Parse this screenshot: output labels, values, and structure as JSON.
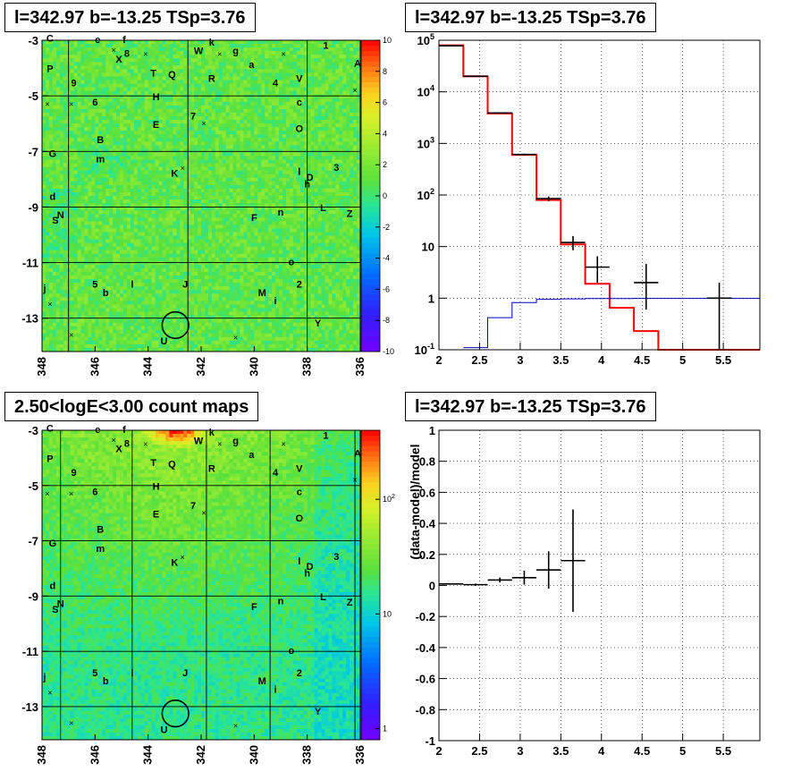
{
  "chart_data": [
    {
      "id": "residual_map",
      "type": "heatmap",
      "title": "l=342.97 b=-13.25 TSp=3.76",
      "xlim": [
        348,
        336
      ],
      "ylim": [
        -14.2,
        -3
      ],
      "x_ticks": [
        "348",
        "346",
        "344",
        "342",
        "340",
        "338",
        "336"
      ],
      "y_ticks": [
        "-3",
        "-5",
        "-7",
        "-9",
        "-11",
        "-13"
      ],
      "colorbar": {
        "min": -10,
        "max": 10,
        "ticks": [
          "-10",
          "-8",
          "-6",
          "-4",
          "-2",
          "0",
          "2",
          "4",
          "6",
          "8",
          "10"
        ]
      },
      "grid_lon": [
        347,
        342.5,
        338
      ],
      "grid_lat": [
        -5,
        -7,
        -9,
        -11,
        -13
      ],
      "circle": {
        "l": 342.97,
        "b": -13.25,
        "r": 0.5
      },
      "source_labels": [
        {
          "t": "C",
          "l": 347.7,
          "b": -3.05
        },
        {
          "t": "e",
          "l": 345.9,
          "b": -3.1
        },
        {
          "t": "f",
          "l": 344.9,
          "b": -3.1
        },
        {
          "t": "8",
          "l": 344.8,
          "b": -3.6
        },
        {
          "t": "X",
          "l": 345.1,
          "b": -3.8
        },
        {
          "t": "W",
          "l": 342.1,
          "b": -3.5
        },
        {
          "t": "k",
          "l": 341.6,
          "b": -3.2
        },
        {
          "t": "g",
          "l": 340.7,
          "b": -3.5
        },
        {
          "t": "1",
          "l": 337.3,
          "b": -3.3
        },
        {
          "t": "P",
          "l": 347.7,
          "b": -4.15
        },
        {
          "t": "a",
          "l": 340.1,
          "b": -4.0
        },
        {
          "t": "A",
          "l": 336.1,
          "b": -3.95
        },
        {
          "t": "T",
          "l": 343.8,
          "b": -4.3
        },
        {
          "t": "Q",
          "l": 343.1,
          "b": -4.35
        },
        {
          "t": "R",
          "l": 341.6,
          "b": -4.5
        },
        {
          "t": "4",
          "l": 339.2,
          "b": -4.65
        },
        {
          "t": "V",
          "l": 338.3,
          "b": -4.5
        },
        {
          "t": "9",
          "l": 346.8,
          "b": -4.65
        },
        {
          "t": "H",
          "l": 343.7,
          "b": -5.15
        },
        {
          "t": "6",
          "l": 346.0,
          "b": -5.35
        },
        {
          "t": "c",
          "l": 338.3,
          "b": -5.35
        },
        {
          "t": "E",
          "l": 343.7,
          "b": -6.15
        },
        {
          "t": "7",
          "l": 342.3,
          "b": -5.85
        },
        {
          "t": "O",
          "l": 338.3,
          "b": -6.3
        },
        {
          "t": "B",
          "l": 345.8,
          "b": -6.7
        },
        {
          "t": "G",
          "l": 347.6,
          "b": -7.2
        },
        {
          "t": "m",
          "l": 345.8,
          "b": -7.4
        },
        {
          "t": "3",
          "l": 336.9,
          "b": -7.7
        },
        {
          "t": "K",
          "l": 343.0,
          "b": -7.9
        },
        {
          "t": "l",
          "l": 338.3,
          "b": -7.85
        },
        {
          "t": "D",
          "l": 337.9,
          "b": -8.05
        },
        {
          "t": "h",
          "l": 338.0,
          "b": -8.3
        },
        {
          "t": "d",
          "l": 347.6,
          "b": -8.75
        },
        {
          "t": "L",
          "l": 337.4,
          "b": -9.15
        },
        {
          "t": "Z",
          "l": 336.4,
          "b": -9.35
        },
        {
          "t": "n",
          "l": 339.0,
          "b": -9.3
        },
        {
          "t": "F",
          "l": 340.0,
          "b": -9.5
        },
        {
          "t": "N",
          "l": 347.3,
          "b": -9.4
        },
        {
          "t": "S",
          "l": 347.5,
          "b": -9.6
        },
        {
          "t": "o",
          "l": 338.6,
          "b": -11.1
        },
        {
          "t": "2",
          "l": 338.3,
          "b": -11.9
        },
        {
          "t": "J",
          "l": 342.6,
          "b": -11.9
        },
        {
          "t": "5",
          "l": 346.0,
          "b": -11.9
        },
        {
          "t": "l",
          "l": 344.6,
          "b": -11.9
        },
        {
          "t": "b",
          "l": 345.6,
          "b": -12.2
        },
        {
          "t": "M",
          "l": 339.7,
          "b": -12.2
        },
        {
          "t": "i",
          "l": 339.2,
          "b": -12.5
        },
        {
          "t": "j",
          "l": 347.9,
          "b": -12.05
        },
        {
          "t": "Y",
          "l": 337.6,
          "b": -13.3
        },
        {
          "t": "U",
          "l": 343.4,
          "b": -13.95
        }
      ],
      "x_marks": [
        {
          "l": 345.3,
          "b": -3.35
        },
        {
          "l": 344.1,
          "b": -3.5
        },
        {
          "l": 341.3,
          "b": -3.5
        },
        {
          "l": 338.9,
          "b": -3.5
        },
        {
          "l": 336.2,
          "b": -4.8
        },
        {
          "l": 347.8,
          "b": -5.3
        },
        {
          "l": 346.9,
          "b": -5.3
        },
        {
          "l": 341.9,
          "b": -6.0
        },
        {
          "l": 342.7,
          "b": -7.6
        },
        {
          "l": 347.7,
          "b": -12.5
        },
        {
          "l": 346.9,
          "b": -13.6
        },
        {
          "l": 340.7,
          "b": -13.7
        }
      ]
    },
    {
      "id": "spectrum",
      "type": "line",
      "title": "l=342.97 b=-13.25 TSp=3.76",
      "log_y": true,
      "xlim": [
        2,
        5.95
      ],
      "ylim": [
        0.1,
        100000
      ],
      "x_ticks": [
        "2",
        "2.5",
        "3",
        "3.5",
        "4",
        "4.5",
        "5",
        "5.5"
      ],
      "y_ticks": [
        "10^-1",
        "1",
        "10",
        "10^2",
        "10^3",
        "10^4",
        "10^5"
      ],
      "grid": true,
      "series": [
        {
          "style": "red",
          "bin_edges": [
            2.0,
            2.3,
            2.6,
            2.9,
            3.2,
            3.5,
            3.8,
            4.1,
            4.4,
            4.7,
            5.95
          ],
          "values": [
            80000,
            20000,
            3800,
            600,
            80,
            11,
            1.9,
            0.65,
            0.23,
            0.1
          ]
        },
        {
          "style": "blue",
          "bin_edges": [
            2.3,
            2.6,
            2.9,
            3.2,
            3.5,
            3.8,
            4.1,
            4.4,
            4.7,
            5.0,
            5.3,
            5.6,
            5.95
          ],
          "values": [
            0.11,
            0.42,
            0.82,
            0.95,
            0.97,
            0.98,
            0.98,
            0.99,
            0.99,
            0.99,
            1.0,
            0.99
          ]
        },
        {
          "style": "black-errorbars",
          "points": [
            {
              "x": 2.15,
              "y": 78000,
              "xerr": 0.15,
              "ylo": 77700,
              "yhi": 78300
            },
            {
              "x": 2.45,
              "y": 20000,
              "xerr": 0.15,
              "ylo": 19860,
              "yhi": 20140
            },
            {
              "x": 2.75,
              "y": 3900,
              "xerr": 0.15,
              "ylo": 3840,
              "yhi": 3960
            },
            {
              "x": 3.05,
              "y": 610,
              "xerr": 0.15,
              "ylo": 585,
              "yhi": 635
            },
            {
              "x": 3.35,
              "y": 85,
              "xerr": 0.15,
              "ylo": 76,
              "yhi": 94
            },
            {
              "x": 3.65,
              "y": 12,
              "xerr": 0.15,
              "ylo": 8.5,
              "yhi": 16
            },
            {
              "x": 3.95,
              "y": 4,
              "xerr": 0.15,
              "ylo": 2,
              "yhi": 6.5
            },
            {
              "x": 4.55,
              "y": 2,
              "xerr": 0.15,
              "ylo": 0.6,
              "yhi": 4.6
            },
            {
              "x": 5.45,
              "y": 1,
              "xerr": 0.15,
              "ylo": 0.1,
              "yhi": 2
            }
          ]
        }
      ]
    },
    {
      "id": "count_map",
      "type": "heatmap",
      "title": "2.50<logE<3.00 count maps",
      "xlim": [
        348,
        336
      ],
      "ylim": [
        -14.2,
        -3
      ],
      "x_ticks": [
        "348",
        "346",
        "344",
        "342",
        "340",
        "338",
        "336"
      ],
      "y_ticks": [
        "-3",
        "-5",
        "-7",
        "-9",
        "-11",
        "-13"
      ],
      "log_color": true,
      "colorbar": {
        "min": 0.8,
        "max": 400,
        "ticks": [
          "1",
          "10",
          "10^2"
        ]
      },
      "grid_lon": [
        347.3,
        344.6,
        341.8,
        339.4,
        336.2
      ],
      "grid_lat": [
        -5,
        -7,
        -9,
        -11,
        -13
      ],
      "circle": {
        "l": 342.97,
        "b": -13.25,
        "r": 0.5
      },
      "source_labels": "same_as_residual_map",
      "x_marks": "same_as_residual_map"
    },
    {
      "id": "residual_ratio",
      "type": "scatter",
      "title": "l=342.97 b=-13.25 TSp=3.76",
      "ylabel": "(data-model)/model",
      "xlim": [
        2,
        5.95
      ],
      "ylim": [
        -1,
        1
      ],
      "x_ticks": [
        "2",
        "2.5",
        "3",
        "3.5",
        "4",
        "4.5",
        "5",
        "5.5"
      ],
      "y_ticks": [
        "-1",
        "-0.8",
        "-0.6",
        "-0.4",
        "-0.2",
        "0",
        "0.2",
        "0.4",
        "0.6",
        "0.8",
        "1"
      ],
      "grid": true,
      "points": [
        {
          "x": 2.15,
          "y": 0.01,
          "xerr": 0.15,
          "yerr": 0.004
        },
        {
          "x": 2.45,
          "y": 0.005,
          "xerr": 0.15,
          "yerr": 0.007
        },
        {
          "x": 2.75,
          "y": 0.035,
          "xerr": 0.15,
          "yerr": 0.016
        },
        {
          "x": 3.05,
          "y": 0.05,
          "xerr": 0.15,
          "yerr": 0.045
        },
        {
          "x": 3.35,
          "y": 0.1,
          "xerr": 0.15,
          "yerr": 0.12
        },
        {
          "x": 3.65,
          "y": 0.16,
          "xerr": 0.15,
          "yerr": 0.33
        }
      ]
    }
  ]
}
